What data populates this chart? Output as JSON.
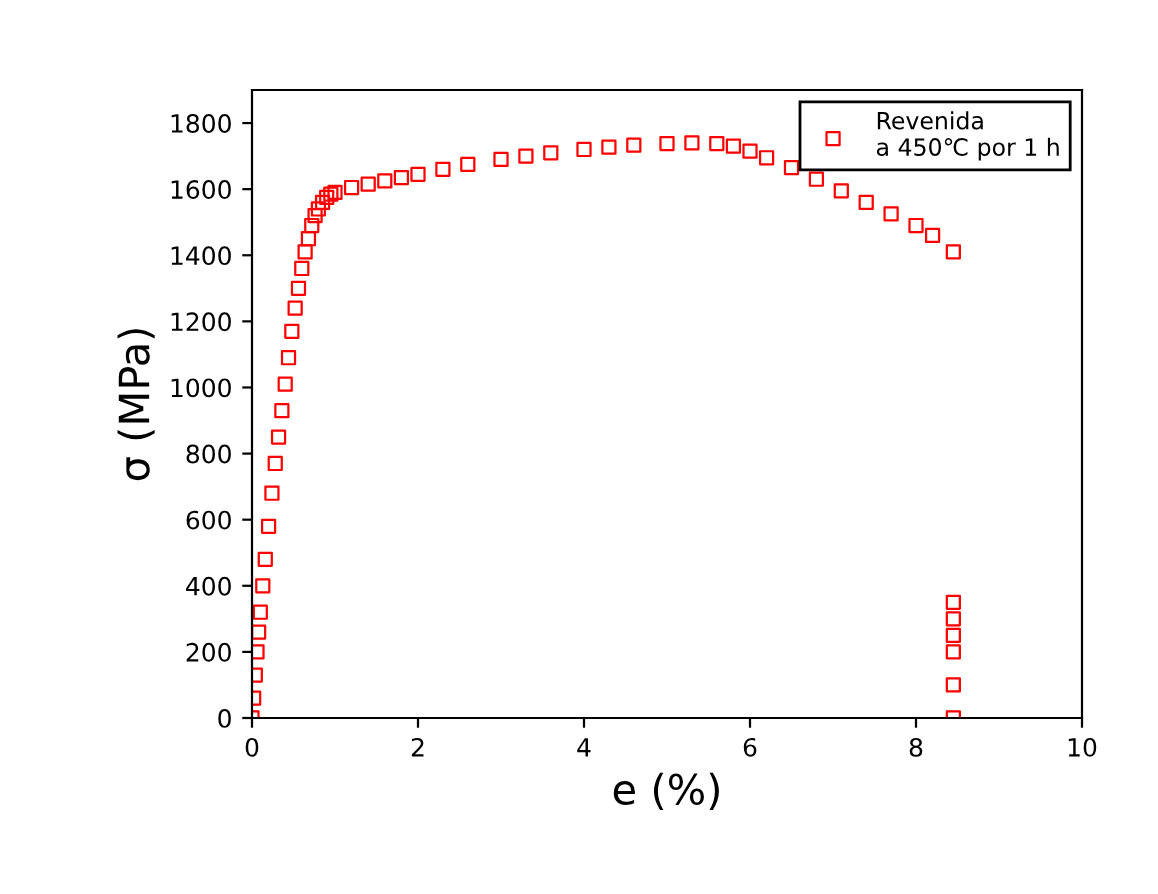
{
  "chart_data": {
    "type": "scatter",
    "xlabel": "e (%)",
    "ylabel": "σ (MPa)",
    "xlim": [
      0,
      10
    ],
    "ylim": [
      0,
      1900
    ],
    "xticks": [
      0,
      2,
      4,
      6,
      8,
      10
    ],
    "yticks": [
      0,
      200,
      400,
      600,
      800,
      1000,
      1200,
      1400,
      1600,
      1800
    ],
    "grid": false,
    "legend": "top right",
    "marker": "square",
    "series": [
      {
        "name": "Revenida\na 450℃ por 1 h",
        "color": "#ff0000",
        "x": [
          0,
          0.02,
          0.04,
          0.06,
          0.08,
          0.1,
          0.13,
          0.16,
          0.2,
          0.24,
          0.28,
          0.32,
          0.36,
          0.4,
          0.44,
          0.48,
          0.52,
          0.56,
          0.6,
          0.64,
          0.68,
          0.72,
          0.76,
          0.8,
          0.85,
          0.9,
          0.95,
          1.0,
          1.2,
          1.4,
          1.6,
          1.8,
          2.0,
          2.3,
          2.6,
          3.0,
          3.3,
          3.6,
          4.0,
          4.3,
          4.6,
          5.0,
          5.3,
          5.6,
          5.8,
          6.0,
          6.2,
          6.5,
          6.8,
          7.1,
          7.4,
          7.7,
          8.0,
          8.2,
          8.45,
          8.45,
          8.45,
          8.45,
          8.45,
          8.45,
          8.45
        ],
        "values": [
          0,
          60,
          130,
          200,
          260,
          320,
          400,
          480,
          580,
          680,
          770,
          850,
          930,
          1010,
          1090,
          1170,
          1240,
          1300,
          1360,
          1410,
          1450,
          1490,
          1520,
          1540,
          1560,
          1575,
          1585,
          1590,
          1605,
          1615,
          1625,
          1635,
          1645,
          1660,
          1675,
          1690,
          1700,
          1710,
          1720,
          1727,
          1733,
          1738,
          1740,
          1738,
          1730,
          1715,
          1695,
          1665,
          1630,
          1595,
          1560,
          1525,
          1490,
          1460,
          1410,
          350,
          300,
          250,
          200,
          100,
          0
        ]
      }
    ]
  }
}
